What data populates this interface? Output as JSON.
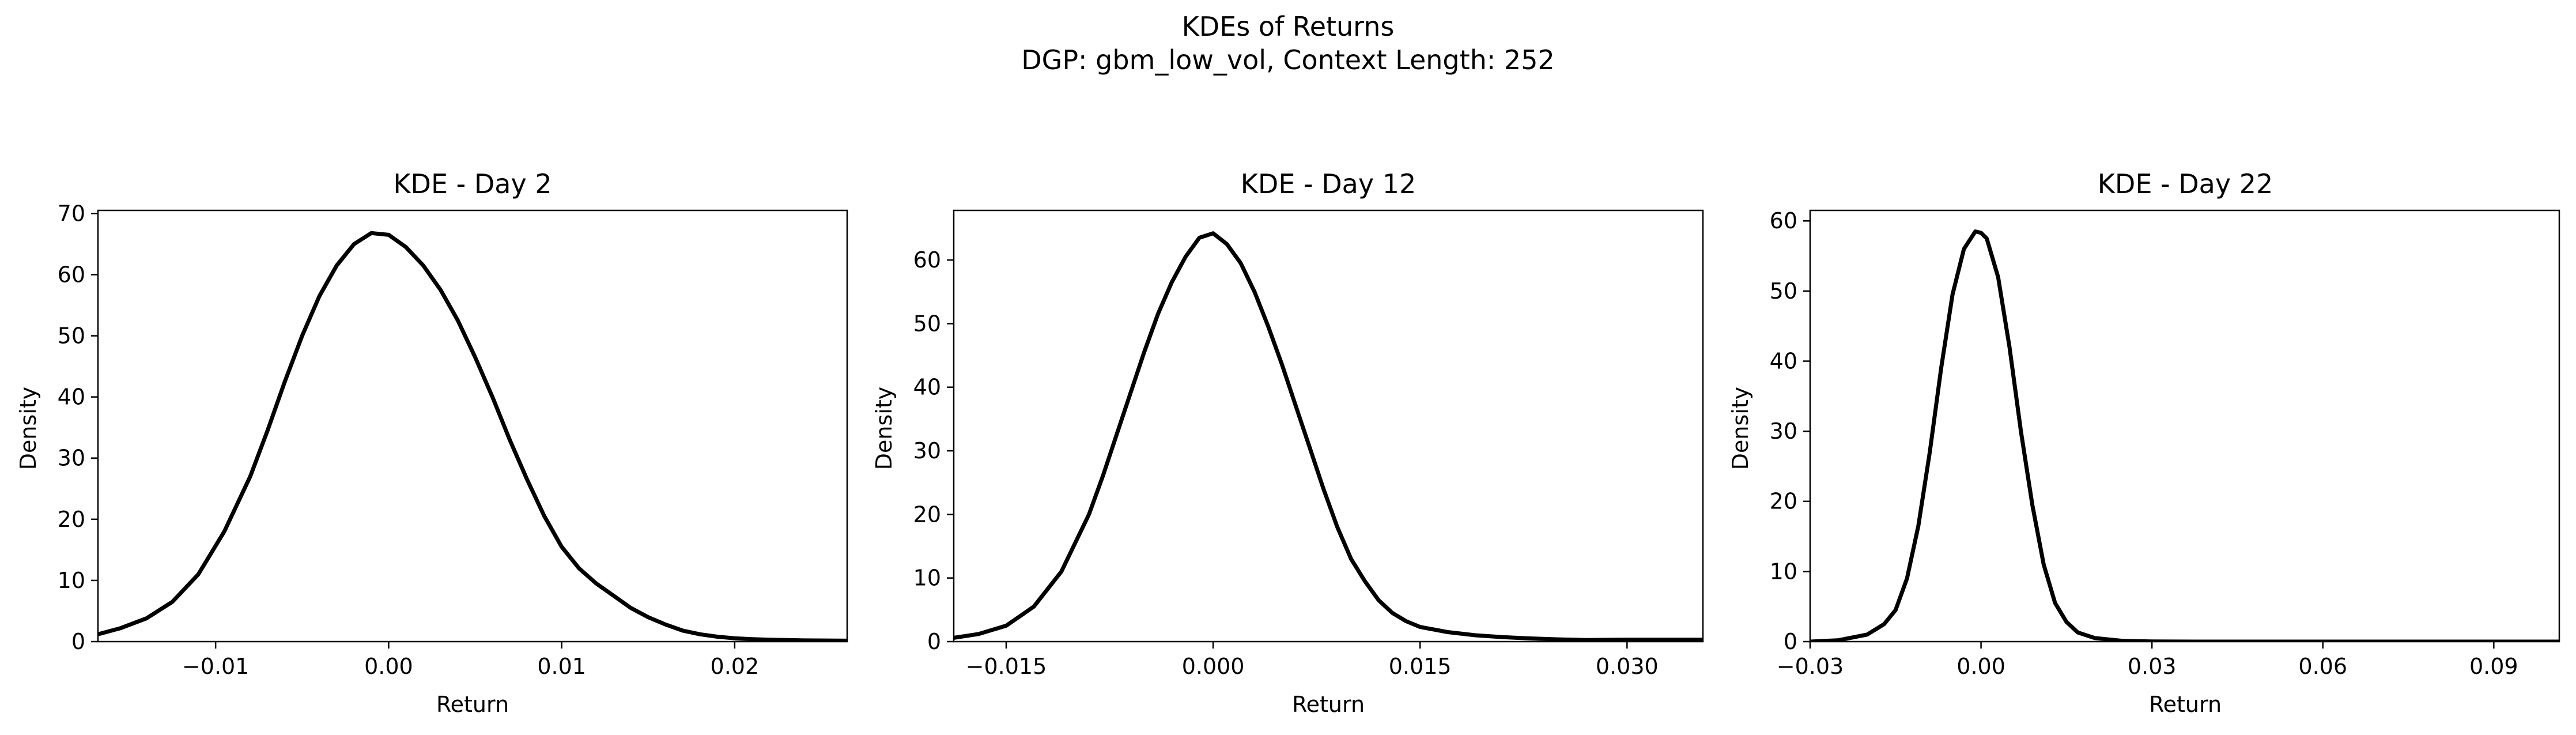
{
  "figure": {
    "title_line1": "KDEs of Returns",
    "title_line2": "DGP: gbm_low_vol, Context Length: 252"
  },
  "colors": {
    "line": "#000000",
    "background": "#ffffff",
    "axes": "#000000"
  },
  "chart_data": [
    {
      "type": "line",
      "title": "KDE - Day 2",
      "xlabel": "Return",
      "ylabel": "Density",
      "xlim": [
        -0.0168,
        0.0265
      ],
      "ylim": [
        0,
        70.5
      ],
      "xticks": [
        -0.01,
        0.0,
        0.01,
        0.02
      ],
      "xtick_labels": [
        "−0.01",
        "0.00",
        "0.01",
        "0.02"
      ],
      "yticks": [
        0,
        10,
        20,
        30,
        40,
        50,
        60,
        70
      ],
      "ytick_labels": [
        "0",
        "10",
        "20",
        "30",
        "40",
        "50",
        "60",
        "70"
      ],
      "grid": false,
      "series": [
        {
          "name": "KDE",
          "x": [
            -0.0168,
            -0.0155,
            -0.014,
            -0.0125,
            -0.011,
            -0.0095,
            -0.008,
            -0.007,
            -0.006,
            -0.005,
            -0.004,
            -0.003,
            -0.002,
            -0.001,
            0.0,
            0.001,
            0.002,
            0.003,
            0.004,
            0.005,
            0.006,
            0.007,
            0.008,
            0.009,
            0.01,
            0.011,
            0.012,
            0.013,
            0.014,
            0.015,
            0.016,
            0.017,
            0.018,
            0.019,
            0.02,
            0.021,
            0.022,
            0.023,
            0.024,
            0.0265
          ],
          "y": [
            1.2,
            2.2,
            3.8,
            6.5,
            11.0,
            18.0,
            27.0,
            34.5,
            42.5,
            50.0,
            56.5,
            61.5,
            65.0,
            66.8,
            66.5,
            64.5,
            61.5,
            57.5,
            52.5,
            46.5,
            40.0,
            33.0,
            26.5,
            20.5,
            15.5,
            12.0,
            9.5,
            7.5,
            5.5,
            4.0,
            2.8,
            1.8,
            1.2,
            0.8,
            0.55,
            0.4,
            0.3,
            0.25,
            0.2,
            0.15
          ]
        }
      ]
    },
    {
      "type": "line",
      "title": "KDE - Day 12",
      "xlabel": "Return",
      "ylabel": "Density",
      "xlim": [
        -0.0188,
        0.0355
      ],
      "ylim": [
        0,
        67.8
      ],
      "xticks": [
        -0.015,
        0.0,
        0.015,
        0.03
      ],
      "xtick_labels": [
        "−0.015",
        "0.000",
        "0.015",
        "0.030"
      ],
      "yticks": [
        0,
        10,
        20,
        30,
        40,
        50,
        60
      ],
      "ytick_labels": [
        "0",
        "10",
        "20",
        "30",
        "40",
        "50",
        "60"
      ],
      "grid": false,
      "series": [
        {
          "name": "KDE",
          "x": [
            -0.0188,
            -0.017,
            -0.015,
            -0.013,
            -0.011,
            -0.009,
            -0.008,
            -0.007,
            -0.006,
            -0.005,
            -0.004,
            -0.003,
            -0.002,
            -0.001,
            0.0,
            0.001,
            0.002,
            0.003,
            0.004,
            0.005,
            0.006,
            0.007,
            0.008,
            0.009,
            0.01,
            0.011,
            0.012,
            0.013,
            0.014,
            0.015,
            0.017,
            0.019,
            0.021,
            0.023,
            0.025,
            0.027,
            0.03,
            0.033,
            0.0355
          ],
          "y": [
            0.6,
            1.2,
            2.5,
            5.5,
            11.0,
            20.0,
            26.0,
            32.5,
            39.0,
            45.5,
            51.5,
            56.5,
            60.5,
            63.5,
            64.2,
            62.5,
            59.5,
            55.0,
            49.5,
            43.5,
            37.0,
            30.5,
            24.0,
            18.0,
            13.0,
            9.5,
            6.5,
            4.5,
            3.2,
            2.3,
            1.5,
            1.0,
            0.7,
            0.5,
            0.35,
            0.25,
            0.3,
            0.3,
            0.3
          ]
        }
      ]
    },
    {
      "type": "line",
      "title": "KDE - Day 22",
      "xlabel": "Return",
      "ylabel": "Density",
      "xlim": [
        -0.03,
        0.1015
      ],
      "ylim": [
        0,
        61.5
      ],
      "xticks": [
        -0.03,
        0.0,
        0.03,
        0.06,
        0.09
      ],
      "xtick_labels": [
        "−0.03",
        "0.00",
        "0.03",
        "0.06",
        "0.09"
      ],
      "yticks": [
        0,
        10,
        20,
        30,
        40,
        50,
        60
      ],
      "ytick_labels": [
        "0",
        "10",
        "20",
        "30",
        "40",
        "50",
        "60"
      ],
      "grid": false,
      "series": [
        {
          "name": "KDE",
          "x": [
            -0.03,
            -0.025,
            -0.02,
            -0.017,
            -0.015,
            -0.013,
            -0.011,
            -0.009,
            -0.007,
            -0.005,
            -0.003,
            -0.001,
            0.0,
            0.001,
            0.003,
            0.005,
            0.007,
            0.009,
            0.011,
            0.013,
            0.015,
            0.017,
            0.02,
            0.025,
            0.03,
            0.04,
            0.06,
            0.08,
            0.1015
          ],
          "y": [
            0.0,
            0.2,
            1.0,
            2.5,
            4.5,
            9.0,
            16.5,
            27.0,
            39.0,
            49.5,
            56.0,
            58.5,
            58.3,
            57.5,
            52.0,
            42.0,
            30.0,
            19.5,
            11.0,
            5.5,
            2.8,
            1.3,
            0.5,
            0.1,
            0.02,
            0.0,
            0.0,
            0.0,
            0.0
          ]
        }
      ]
    }
  ]
}
